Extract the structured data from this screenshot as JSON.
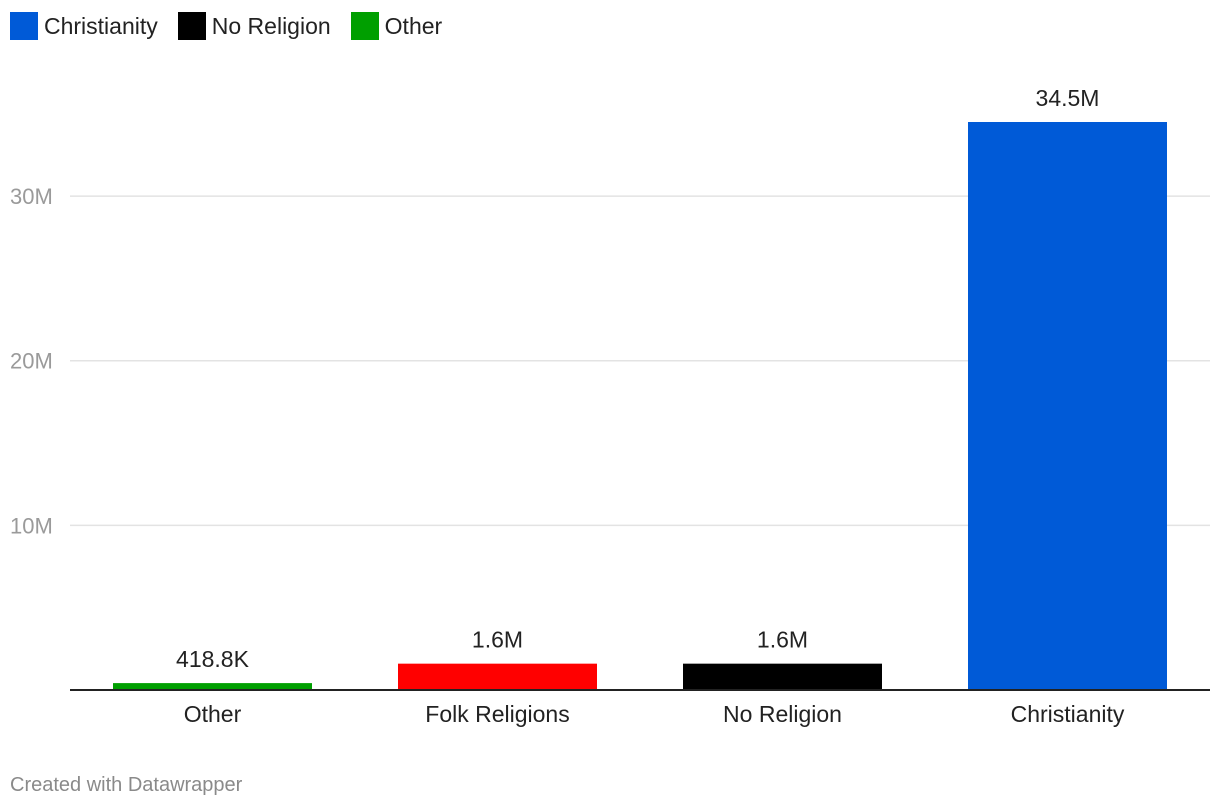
{
  "legend": [
    {
      "label": "Christianity",
      "color": "#005ad7"
    },
    {
      "label": "No Religion",
      "color": "#000000"
    },
    {
      "label": "Other",
      "color": "#009f00"
    }
  ],
  "footer": {
    "credit": "Created with Datawrapper"
  },
  "chart_data": {
    "type": "bar",
    "categories": [
      "Other",
      "Folk Religions",
      "No Religion",
      "Christianity"
    ],
    "values": [
      418800,
      1600000,
      1600000,
      34500000
    ],
    "value_labels": [
      "418.8K",
      "1.6M",
      "1.6M",
      "34.5M"
    ],
    "colors": [
      "#009f00",
      "#ff0000",
      "#000000",
      "#005ad7"
    ],
    "yticks": [
      10000000,
      20000000,
      30000000
    ],
    "ytick_labels": [
      "10M",
      "20M",
      "30M"
    ],
    "ylim": [
      0,
      34500000
    ],
    "grid": true,
    "legend_position": "top-left"
  }
}
